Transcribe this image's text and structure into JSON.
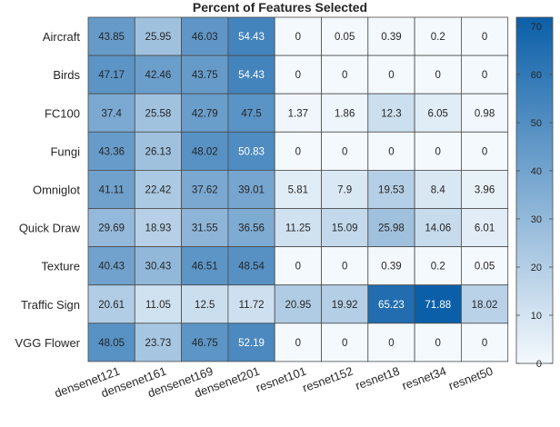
{
  "chart_data": {
    "type": "heatmap",
    "title": "Percent of Features Selected",
    "rows": [
      "Aircraft",
      "Birds",
      "FC100",
      "Fungi",
      "Omniglot",
      "Quick Draw",
      "Texture",
      "Traffic Sign",
      "VGG Flower"
    ],
    "columns": [
      "densenet121",
      "densenet161",
      "densenet169",
      "densenet201",
      "resnet101",
      "resnet152",
      "resnet18",
      "resnet34",
      "resnet50"
    ],
    "values": [
      [
        "43.85",
        "25.95",
        "46.03",
        "54.43",
        "0",
        "0.05",
        "0.39",
        "0.2",
        "0"
      ],
      [
        "47.17",
        "42.46",
        "43.75",
        "54.43",
        "0",
        "0",
        "0",
        "0",
        "0"
      ],
      [
        "37.4",
        "25.58",
        "42.79",
        "47.5",
        "1.37",
        "1.86",
        "12.3",
        "6.05",
        "0.98"
      ],
      [
        "43.36",
        "26.13",
        "48.02",
        "50.83",
        "0",
        "0",
        "0",
        "0",
        "0"
      ],
      [
        "41.11",
        "22.42",
        "37.62",
        "39.01",
        "5.81",
        "7.9",
        "19.53",
        "8.4",
        "3.96"
      ],
      [
        "29.69",
        "18.93",
        "31.55",
        "36.56",
        "11.25",
        "15.09",
        "25.98",
        "14.06",
        "6.01"
      ],
      [
        "40.43",
        "30.43",
        "46.51",
        "48.54",
        "0",
        "0",
        "0.39",
        "0.2",
        "0.05"
      ],
      [
        "20.61",
        "11.05",
        "12.5",
        "11.72",
        "20.95",
        "19.92",
        "65.23",
        "71.88",
        "18.02"
      ],
      [
        "48.05",
        "23.73",
        "46.75",
        "52.19",
        "0",
        "0",
        "0",
        "0",
        "0"
      ]
    ],
    "colorbar": {
      "range": [
        0,
        71.88
      ],
      "ticks": [
        "0",
        "10",
        "20",
        "30",
        "40",
        "50",
        "60",
        "70"
      ],
      "color_low": "#f4f9fd",
      "color_high": "#0b5fa8"
    }
  }
}
